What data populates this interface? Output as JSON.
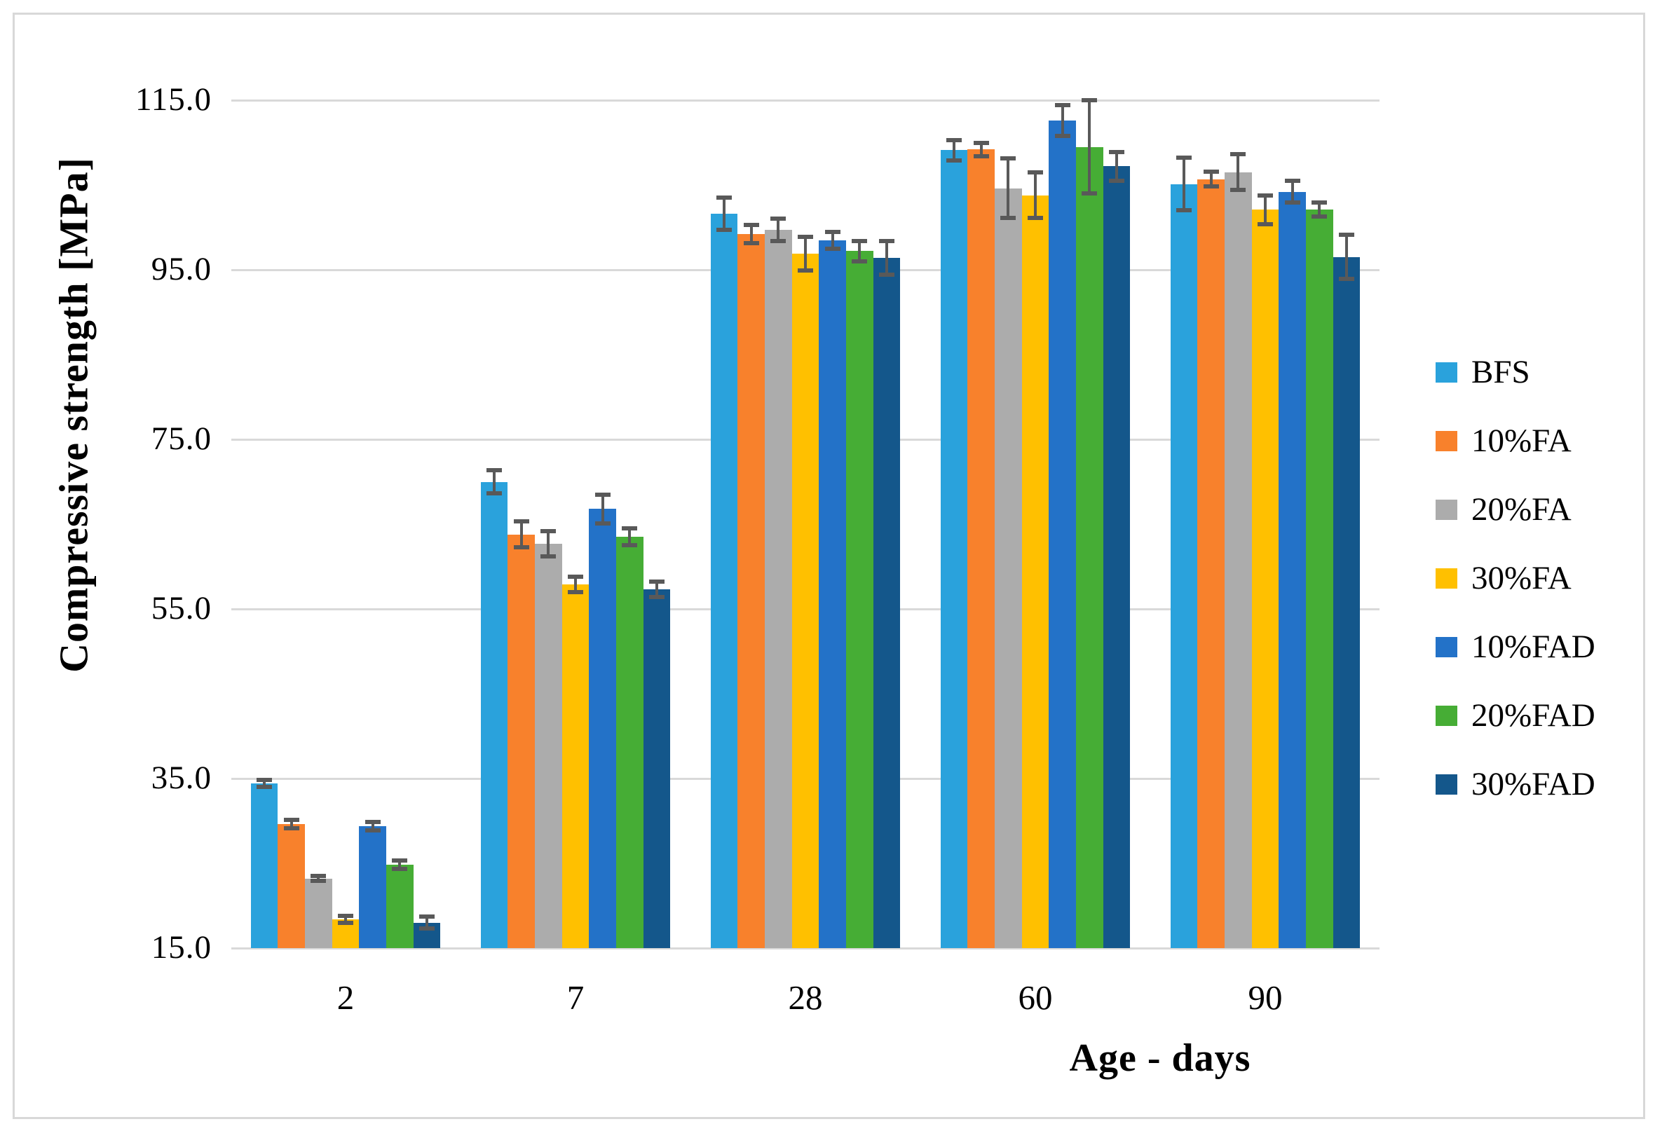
{
  "chart_data": {
    "type": "bar",
    "title": "",
    "xlabel": "Age - days",
    "ylabel": "Compressive strength [MPa]",
    "categories": [
      "2",
      "7",
      "28",
      "60",
      "90"
    ],
    "series": [
      {
        "name": "BFS",
        "color": "#2aa2dc",
        "values": [
          34.4,
          70.0,
          101.6,
          109.1,
          105.1
        ],
        "errors": [
          0.4,
          1.4,
          1.9,
          1.2,
          3.1
        ]
      },
      {
        "name": "10%FA",
        "color": "#f8812c",
        "values": [
          29.6,
          63.8,
          99.2,
          109.2,
          105.7
        ],
        "errors": [
          0.5,
          1.5,
          1.1,
          0.8,
          0.9
        ]
      },
      {
        "name": "20%FA",
        "color": "#acacac",
        "values": [
          23.2,
          62.7,
          99.7,
          104.6,
          106.5
        ],
        "errors": [
          0.3,
          1.5,
          1.3,
          3.5,
          2.1
        ]
      },
      {
        "name": "30%FA",
        "color": "#ffc000",
        "values": [
          18.4,
          57.9,
          96.9,
          103.8,
          102.1
        ],
        "errors": [
          0.4,
          0.9,
          2.0,
          2.7,
          1.7
        ]
      },
      {
        "name": "10%FAD",
        "color": "#2372c8",
        "values": [
          29.4,
          66.8,
          98.5,
          112.6,
          104.2
        ],
        "errors": [
          0.5,
          1.7,
          1.0,
          1.8,
          1.3
        ]
      },
      {
        "name": "20%FAD",
        "color": "#46ad35",
        "values": [
          24.8,
          63.5,
          97.2,
          109.5,
          102.1
        ],
        "errors": [
          0.5,
          1.0,
          1.2,
          5.5,
          0.8
        ]
      },
      {
        "name": "30%FAD",
        "color": "#14578b",
        "values": [
          18.0,
          57.3,
          96.4,
          107.2,
          96.5
        ],
        "errors": [
          0.7,
          0.9,
          2.0,
          1.7,
          2.6
        ]
      }
    ],
    "y_axis": {
      "min": 15,
      "max": 115,
      "step": 20,
      "tick_labels": [
        "15.0",
        "35.0",
        "55.0",
        "75.0",
        "95.0",
        "115.0"
      ]
    },
    "grid": true,
    "legend_position": "right",
    "colors": {
      "gridline": "#d9d9d9",
      "error_bar": "#595959",
      "frame_border": "#d8d8d8",
      "background": "#ffffff",
      "text": "#000000"
    }
  }
}
